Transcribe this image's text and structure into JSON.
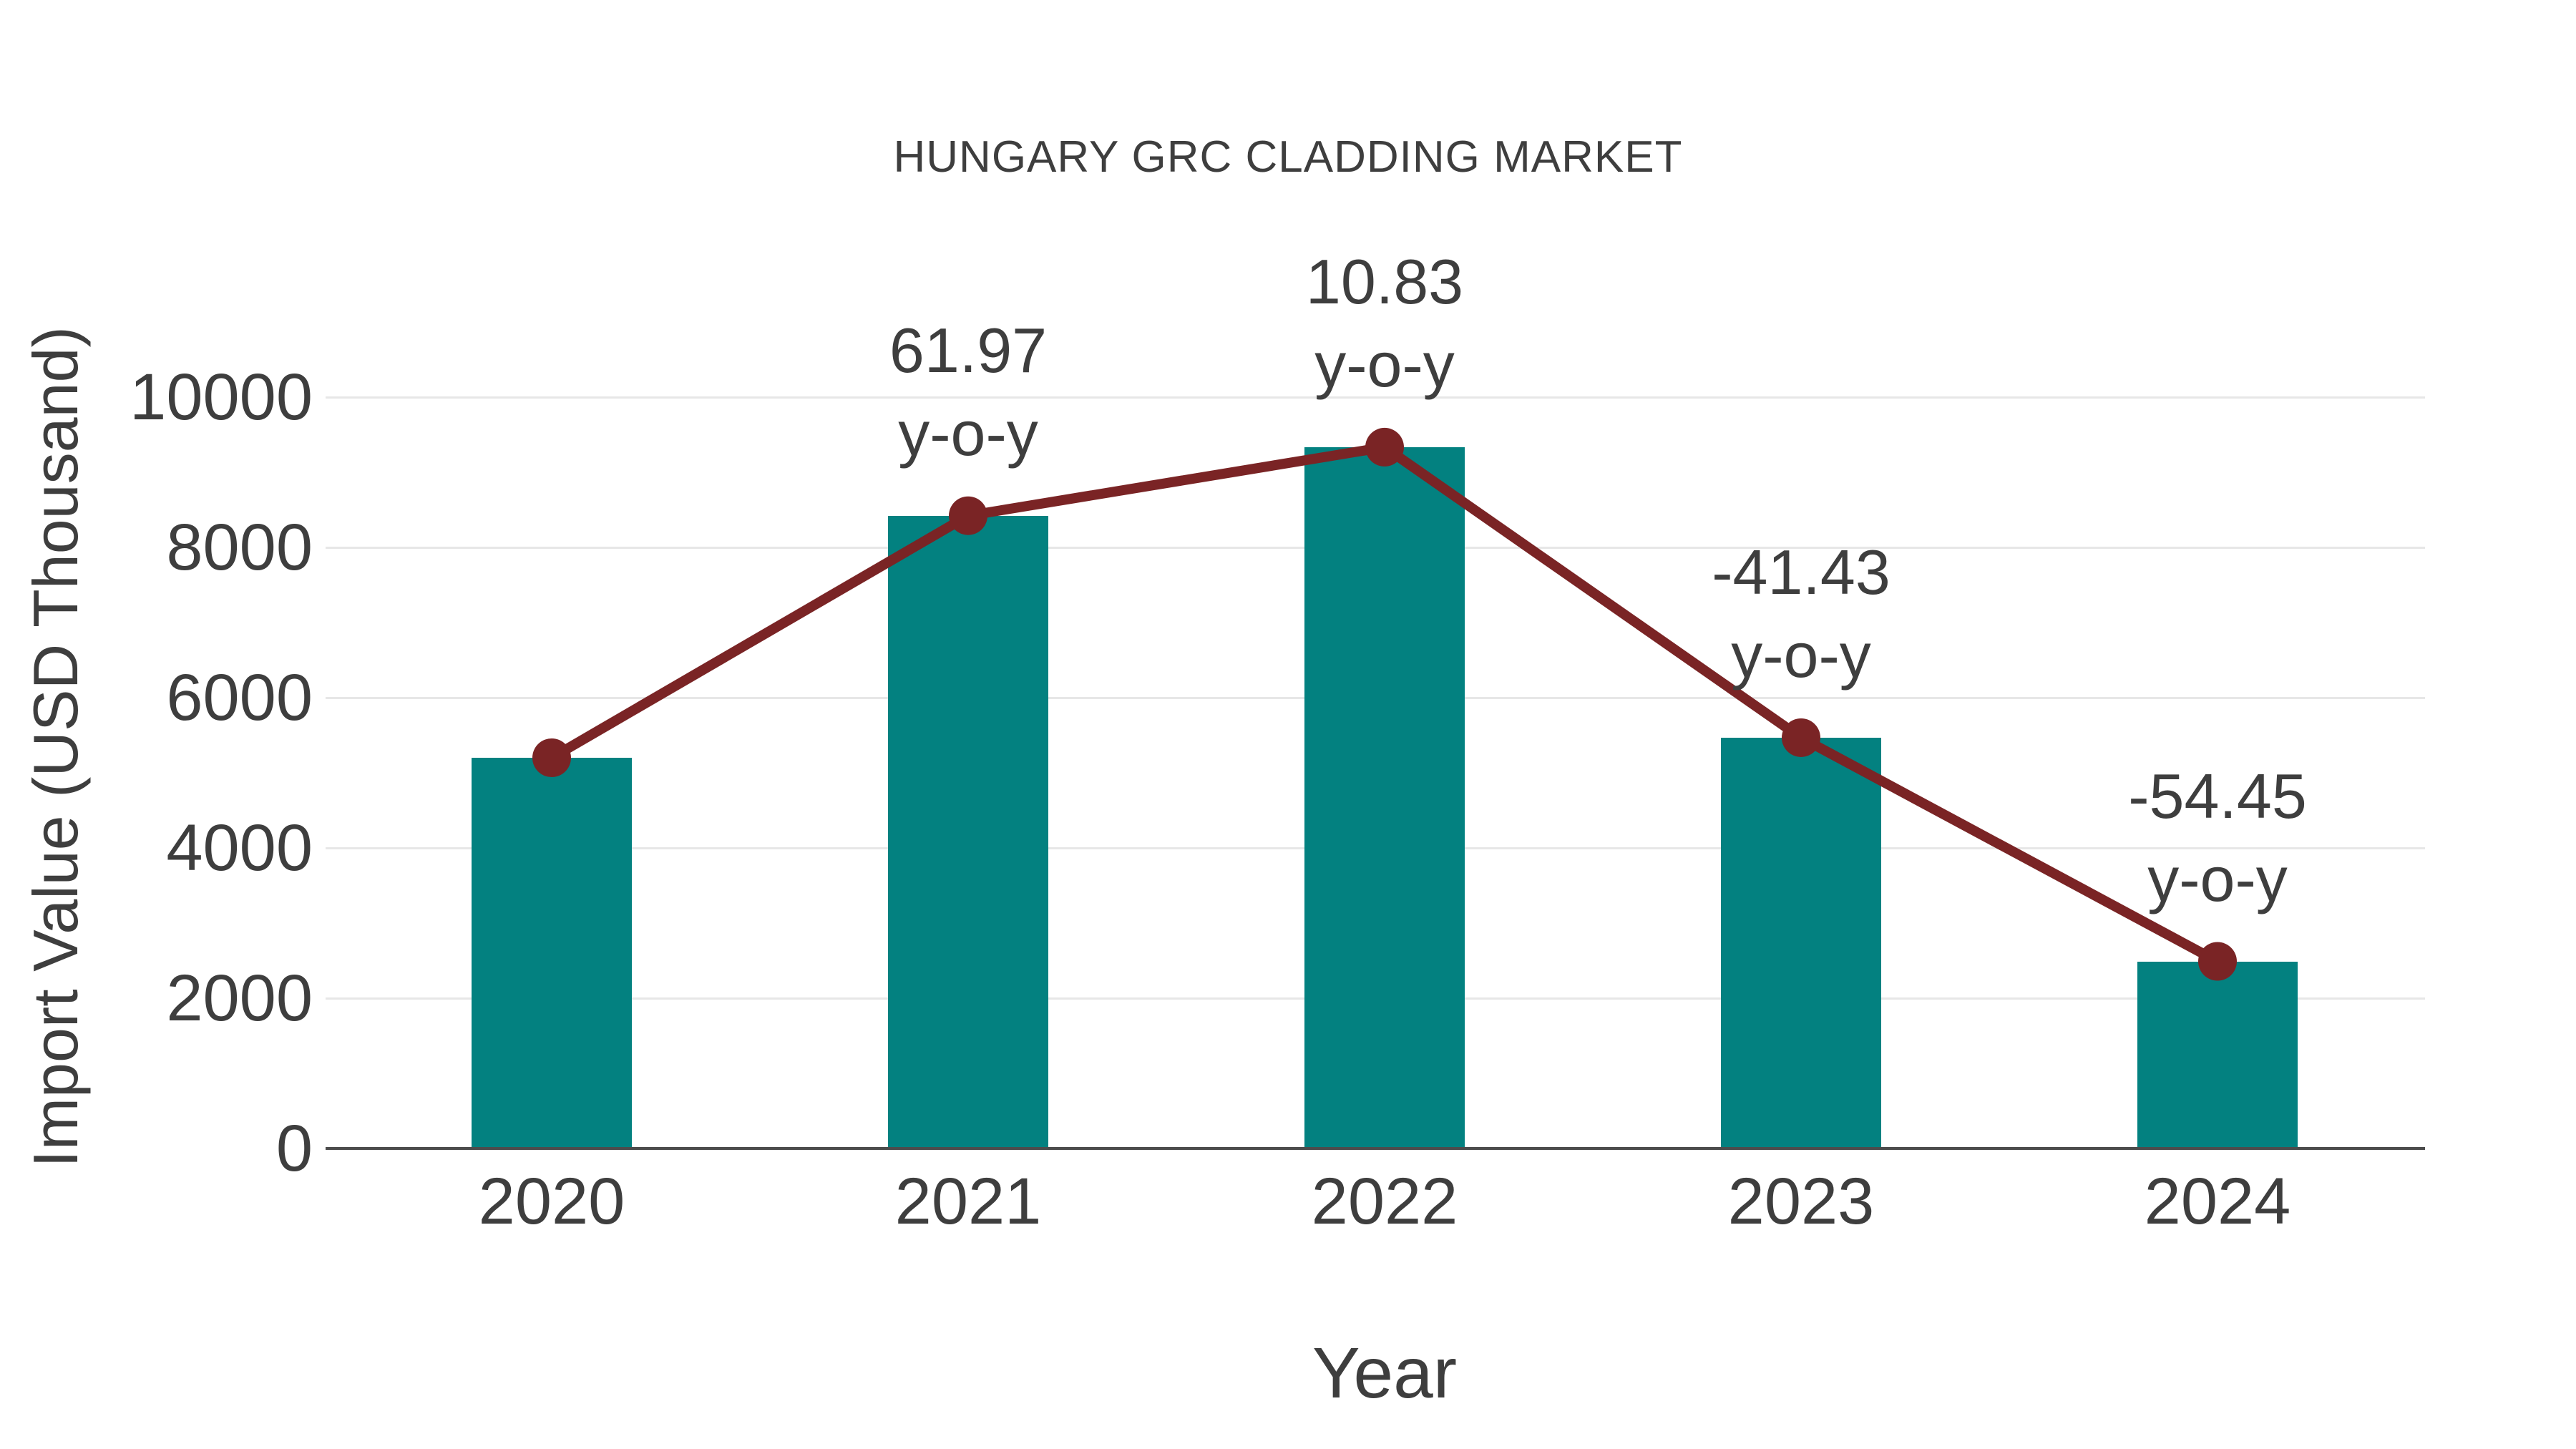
{
  "figure": {
    "background": "#ffffff",
    "text_color": "#3e3e3e",
    "grid_color": "#e7e7e7",
    "axis_color": "#4c4c4c"
  },
  "chart_data": {
    "type": "bar",
    "title": "HUNGARY GRC CLADDING MARKET",
    "xlabel": "Year",
    "ylabel": "Import Value (USD Thousand)",
    "categories": [
      "2020",
      "2021",
      "2022",
      "2023",
      "2024"
    ],
    "series": [
      {
        "name": "Import Value bars",
        "type": "bar",
        "color": "#038180",
        "values": [
          5200,
          8422,
          9334,
          5467,
          2490
        ]
      },
      {
        "name": "Import Value trend line",
        "type": "line",
        "color": "#7a2425",
        "marker": "circle",
        "values": [
          5200,
          8422,
          9334,
          5467,
          2490
        ]
      }
    ],
    "annotations": [
      {
        "category": "2021",
        "index": 1,
        "lines": [
          "61.97",
          "y-o-y"
        ]
      },
      {
        "category": "2022",
        "index": 2,
        "lines": [
          "10.83",
          "y-o-y"
        ]
      },
      {
        "category": "2023",
        "index": 3,
        "lines": [
          "-41.43",
          "y-o-y"
        ]
      },
      {
        "category": "2024",
        "index": 4,
        "lines": [
          "-54.45",
          "y-o-y"
        ]
      }
    ],
    "yticks": [
      0,
      2000,
      4000,
      6000,
      8000,
      10000
    ],
    "ylim": [
      0,
      10000
    ],
    "grid": true,
    "legend_position": "none"
  }
}
